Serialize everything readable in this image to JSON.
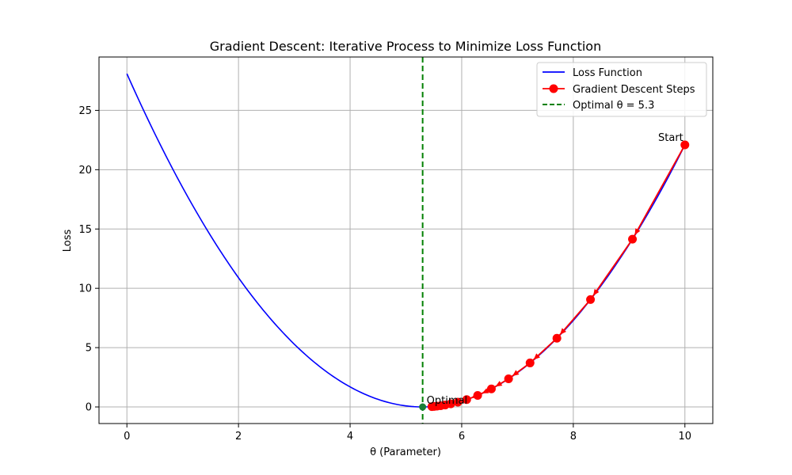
{
  "chart_data": {
    "type": "line",
    "title": "Gradient Descent: Iterative Process to Minimize Loss Function",
    "xlabel": "θ (Parameter)",
    "ylabel": "Loss",
    "xlim": [
      -0.5,
      10.5
    ],
    "ylim": [
      -1.4,
      29.5
    ],
    "xticks": [
      0,
      2,
      4,
      6,
      8,
      10
    ],
    "yticks": [
      0,
      5,
      10,
      15,
      20,
      25
    ],
    "grid": true,
    "legend_position": "upper right",
    "loss_function": {
      "name": "Loss Function",
      "color": "#0000ff",
      "formula": "(θ - 5.3)^2",
      "x_range": [
        0,
        10
      ]
    },
    "gd_steps": {
      "name": "Gradient Descent Steps",
      "color": "#ff0000",
      "x": [
        10.0,
        9.06,
        8.308,
        7.706,
        7.225,
        6.84,
        6.532,
        6.286,
        6.089,
        5.931,
        5.805,
        5.704,
        5.623,
        5.558,
        5.507,
        5.466
      ],
      "y": [
        22.09,
        14.14,
        9.05,
        5.79,
        3.71,
        2.37,
        1.52,
        0.97,
        0.62,
        0.4,
        0.26,
        0.16,
        0.1,
        0.07,
        0.04,
        0.03
      ]
    },
    "optimal": {
      "name": "Optimal θ = 5.3",
      "x": 5.3,
      "y": 0,
      "line_color": "#008000",
      "point_color": "#1a7f37"
    },
    "annotations": [
      {
        "text": "Start",
        "x": 10.0,
        "y": 22.09
      },
      {
        "text": "Optimal",
        "x": 5.3,
        "y": 0
      }
    ]
  }
}
